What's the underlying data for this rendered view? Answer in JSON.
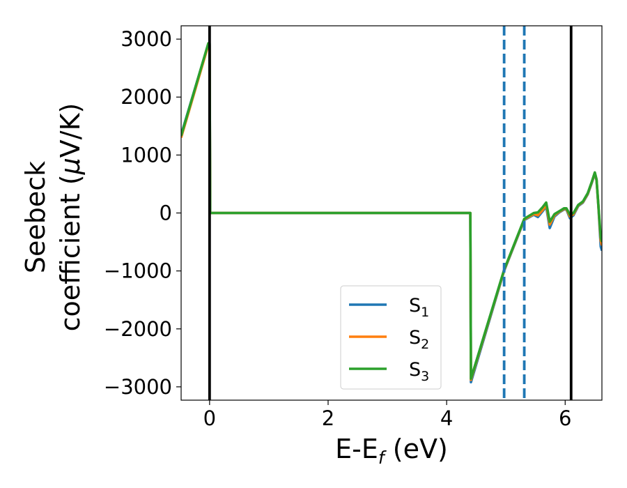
{
  "chart_data": {
    "type": "line",
    "xlabel": "E-E",
    "xlabel_sub": "f",
    "xlabel_unit": " (eV)",
    "ylabel_line1": "Seebeck",
    "ylabel_line2": "coefficient  (",
    "ylabel_mu": "μ",
    "ylabel_unit": "V/K)",
    "xlim": [
      -0.48,
      6.62
    ],
    "ylim": [
      -3230,
      3230
    ],
    "xticks": [
      0,
      2,
      4,
      6
    ],
    "xtick_labels": [
      "0",
      "2",
      "4",
      "6"
    ],
    "yticks": [
      -3000,
      -2000,
      -1000,
      0,
      1000,
      2000,
      3000
    ],
    "ytick_labels": [
      "−3000",
      "−2000",
      "−1000",
      "0",
      "1000",
      "2000",
      "3000"
    ],
    "grid": false,
    "legend_position": "lower-right",
    "vlines_solid": [
      0,
      6.1
    ],
    "vlines_dashed": [
      4.97,
      5.31
    ],
    "series": [
      {
        "name": "S",
        "sub": "1",
        "color": "#1f77b4",
        "x": [
          -0.48,
          -0.02,
          0.0,
          0.01,
          4.4,
          4.41,
          4.97,
          5.31,
          5.47,
          5.54,
          5.62,
          5.68,
          5.74,
          5.82,
          5.9,
          5.98,
          6.02,
          6.08,
          6.14,
          6.22,
          6.3,
          6.38,
          6.45,
          6.5,
          6.53,
          6.56,
          6.6,
          6.62
        ],
        "y": [
          1350,
          2920,
          2920,
          0,
          0,
          -2920,
          -1000,
          -120,
          -30,
          -70,
          30,
          110,
          -260,
          -60,
          10,
          60,
          60,
          -90,
          -40,
          120,
          180,
          320,
          520,
          680,
          560,
          120,
          -580,
          -650
        ]
      },
      {
        "name": "S",
        "sub": "2",
        "color": "#ff7f0e",
        "x": [
          -0.48,
          -0.02,
          0.0,
          0.01,
          4.4,
          4.41,
          4.97,
          5.31,
          5.47,
          5.54,
          5.62,
          5.68,
          5.74,
          5.82,
          5.9,
          5.98,
          6.02,
          6.08,
          6.14,
          6.22,
          6.3,
          6.38,
          6.45,
          6.5,
          6.53,
          6.56,
          6.6,
          6.62
        ],
        "y": [
          1300,
          2900,
          2900,
          0,
          0,
          -2880,
          -990,
          -110,
          -20,
          -40,
          50,
          140,
          -200,
          -40,
          20,
          70,
          70,
          -60,
          -20,
          130,
          190,
          330,
          530,
          690,
          570,
          130,
          -480,
          -560
        ]
      },
      {
        "name": "S",
        "sub": "3",
        "color": "#2ca02c",
        "x": [
          -0.48,
          -0.02,
          0.0,
          0.01,
          4.4,
          4.41,
          4.97,
          5.31,
          5.47,
          5.54,
          5.62,
          5.68,
          5.74,
          5.82,
          5.9,
          5.98,
          6.02,
          6.08,
          6.14,
          6.22,
          6.3,
          6.38,
          6.45,
          6.5,
          6.53,
          6.56,
          6.6,
          6.62
        ],
        "y": [
          1330,
          2930,
          2930,
          0,
          0,
          -2860,
          -980,
          -100,
          0,
          10,
          100,
          180,
          -150,
          -20,
          30,
          80,
          80,
          -30,
          0,
          140,
          200,
          340,
          540,
          700,
          580,
          140,
          -420,
          -500
        ]
      }
    ]
  }
}
